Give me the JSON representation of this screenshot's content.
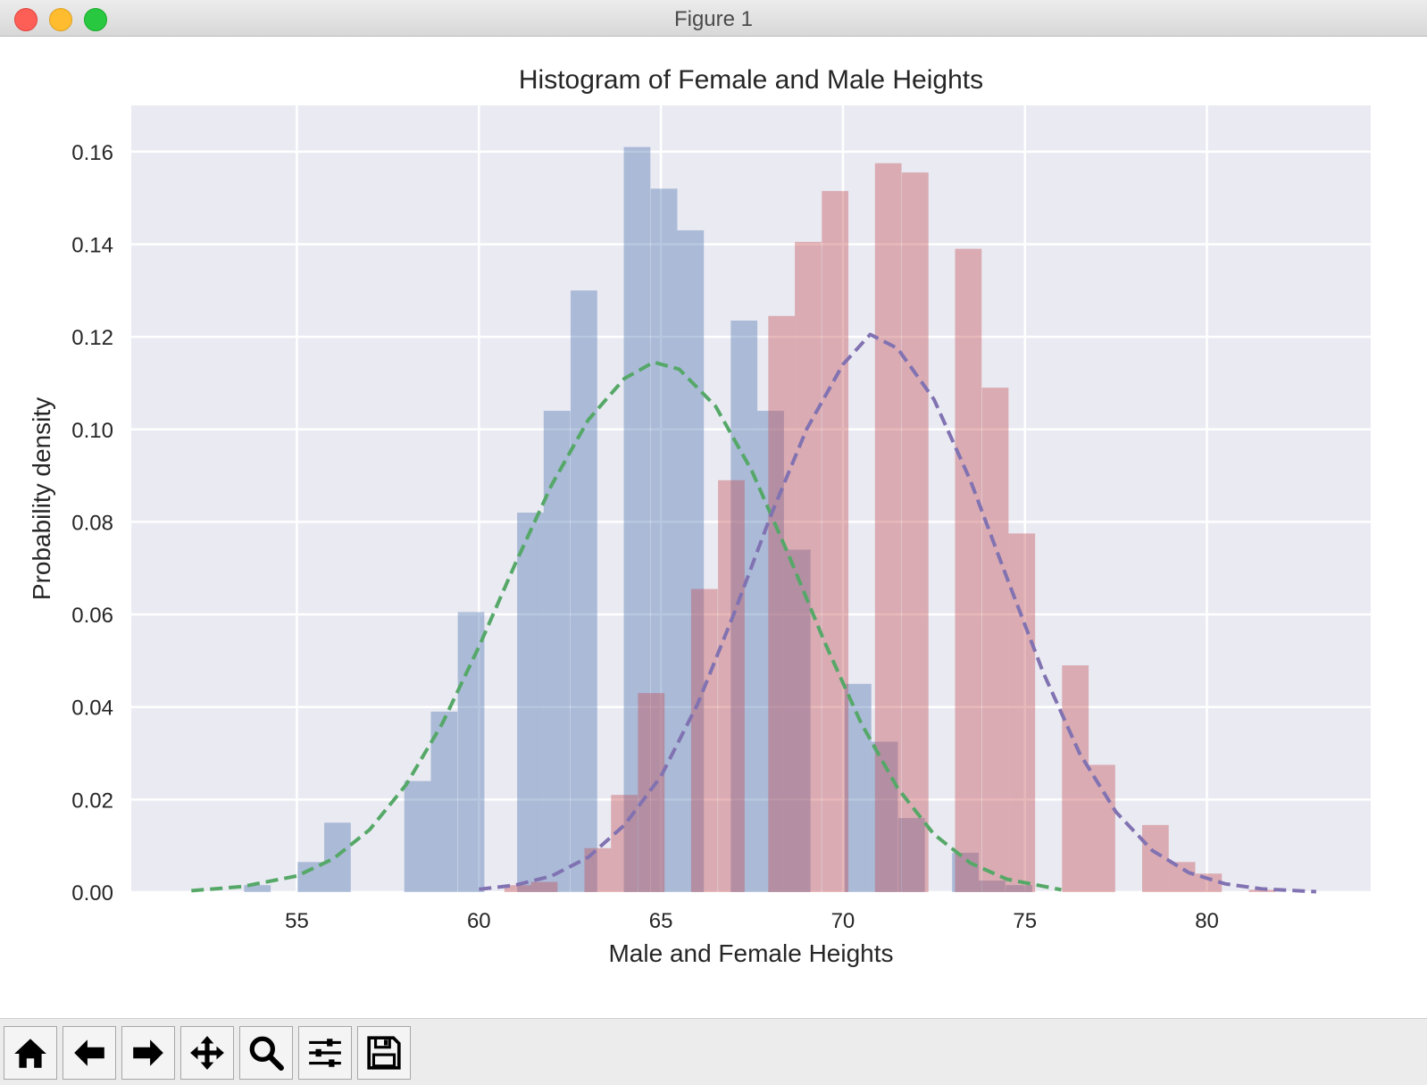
{
  "window": {
    "title": "Figure 1"
  },
  "toolbar": {
    "tools": [
      {
        "name": "home-button",
        "icon": "home-icon"
      },
      {
        "name": "back-button",
        "icon": "arrow-left-icon"
      },
      {
        "name": "forward-button",
        "icon": "arrow-right-icon"
      },
      {
        "name": "pan-button",
        "icon": "move-icon"
      },
      {
        "name": "zoom-button",
        "icon": "magnifier-icon"
      },
      {
        "name": "configure-subplots-button",
        "icon": "sliders-icon"
      },
      {
        "name": "save-button",
        "icon": "floppy-disk-icon"
      }
    ]
  },
  "chart_data": {
    "type": "bar",
    "title": "Histogram of Female and Male Heights",
    "xlabel": "Male and Female Heights",
    "ylabel": "Probability density",
    "xlim": [
      50.45,
      84.5
    ],
    "ylim": [
      0,
      0.17
    ],
    "xticks": [
      55,
      60,
      65,
      70,
      75,
      80
    ],
    "xtick_labels": [
      "55",
      "60",
      "65",
      "70",
      "75",
      "80"
    ],
    "yticks": [
      0,
      0.02,
      0.04,
      0.06,
      0.08,
      0.1,
      0.12,
      0.14,
      0.16
    ],
    "ytick_labels": [
      "0.00",
      "0.02",
      "0.04",
      "0.06",
      "0.08",
      "0.10",
      "0.12",
      "0.14",
      "0.16"
    ],
    "grid": true,
    "colors": {
      "axes_background": "#eaeaf2",
      "grid": "#ffffff",
      "histogram_1": "#4c72b0",
      "histogram_2": "#c44e52",
      "fit_curve_1": "#55a868",
      "fit_curve_2": "#8172b2"
    },
    "series": [
      {
        "kind": "histogram",
        "color": "#4c72b0",
        "opacity": 0.4,
        "bin_width": 0.73,
        "bins": [
          [
            53.55,
            0.0015
          ],
          [
            55.02,
            0.0065
          ],
          [
            55.75,
            0.015
          ],
          [
            57.95,
            0.024
          ],
          [
            58.68,
            0.039
          ],
          [
            59.42,
            0.0605
          ],
          [
            61.05,
            0.082
          ],
          [
            61.78,
            0.104
          ],
          [
            62.52,
            0.13
          ],
          [
            63.98,
            0.161
          ],
          [
            64.72,
            0.152
          ],
          [
            65.45,
            0.143
          ],
          [
            66.92,
            0.1235
          ],
          [
            67.65,
            0.104
          ],
          [
            68.38,
            0.074
          ],
          [
            70.05,
            0.045
          ],
          [
            70.78,
            0.0325
          ],
          [
            71.52,
            0.016
          ],
          [
            73.0,
            0.0085
          ],
          [
            73.73,
            0.0025
          ],
          [
            74.47,
            0.0015
          ]
        ]
      },
      {
        "kind": "histogram",
        "color": "#c44e52",
        "opacity": 0.4,
        "bin_width": 0.73,
        "bins": [
          [
            60.7,
            0.0015
          ],
          [
            61.43,
            0.0022
          ],
          [
            62.9,
            0.0095
          ],
          [
            63.63,
            0.021
          ],
          [
            64.37,
            0.043
          ],
          [
            65.83,
            0.0655
          ],
          [
            66.57,
            0.089
          ],
          [
            67.95,
            0.1245
          ],
          [
            68.68,
            0.1405
          ],
          [
            69.42,
            0.1515
          ],
          [
            70.88,
            0.1575
          ],
          [
            71.62,
            0.1555
          ],
          [
            73.08,
            0.139
          ],
          [
            73.82,
            0.109
          ],
          [
            74.55,
            0.0775
          ],
          [
            76.02,
            0.049
          ],
          [
            76.75,
            0.0275
          ],
          [
            78.22,
            0.0145
          ],
          [
            78.95,
            0.0065
          ],
          [
            79.68,
            0.004
          ],
          [
            81.15,
            0.0005
          ]
        ]
      },
      {
        "kind": "line",
        "style": "dashed",
        "color": "#55a868",
        "x": [
          52.1,
          53.5,
          55.0,
          56.0,
          57.0,
          58.0,
          59.0,
          60.0,
          61.0,
          62.0,
          63.0,
          64.0,
          64.8,
          65.5,
          66.5,
          67.5,
          68.5,
          69.5,
          70.5,
          71.5,
          72.5,
          73.5,
          74.5,
          76.0
        ],
        "y": [
          0.0003,
          0.0012,
          0.0035,
          0.0072,
          0.0135,
          0.0232,
          0.0365,
          0.053,
          0.071,
          0.088,
          0.102,
          0.111,
          0.1145,
          0.113,
          0.105,
          0.091,
          0.073,
          0.054,
          0.0365,
          0.0225,
          0.0125,
          0.0063,
          0.0028,
          0.0005
        ]
      },
      {
        "kind": "line",
        "style": "dashed",
        "color": "#8172b2",
        "x": [
          60.0,
          61.0,
          62.0,
          63.0,
          64.0,
          65.0,
          66.0,
          67.0,
          68.0,
          69.0,
          70.0,
          70.75,
          71.5,
          72.5,
          73.5,
          74.5,
          75.5,
          76.5,
          77.5,
          78.5,
          79.5,
          80.5,
          81.5,
          83.0
        ],
        "y": [
          0.0006,
          0.0015,
          0.0035,
          0.0075,
          0.0145,
          0.025,
          0.0405,
          0.06,
          0.081,
          0.1,
          0.114,
          0.1205,
          0.1175,
          0.1065,
          0.089,
          0.068,
          0.0475,
          0.03,
          0.0173,
          0.009,
          0.0042,
          0.0018,
          0.0007,
          0.0001
        ]
      }
    ]
  }
}
